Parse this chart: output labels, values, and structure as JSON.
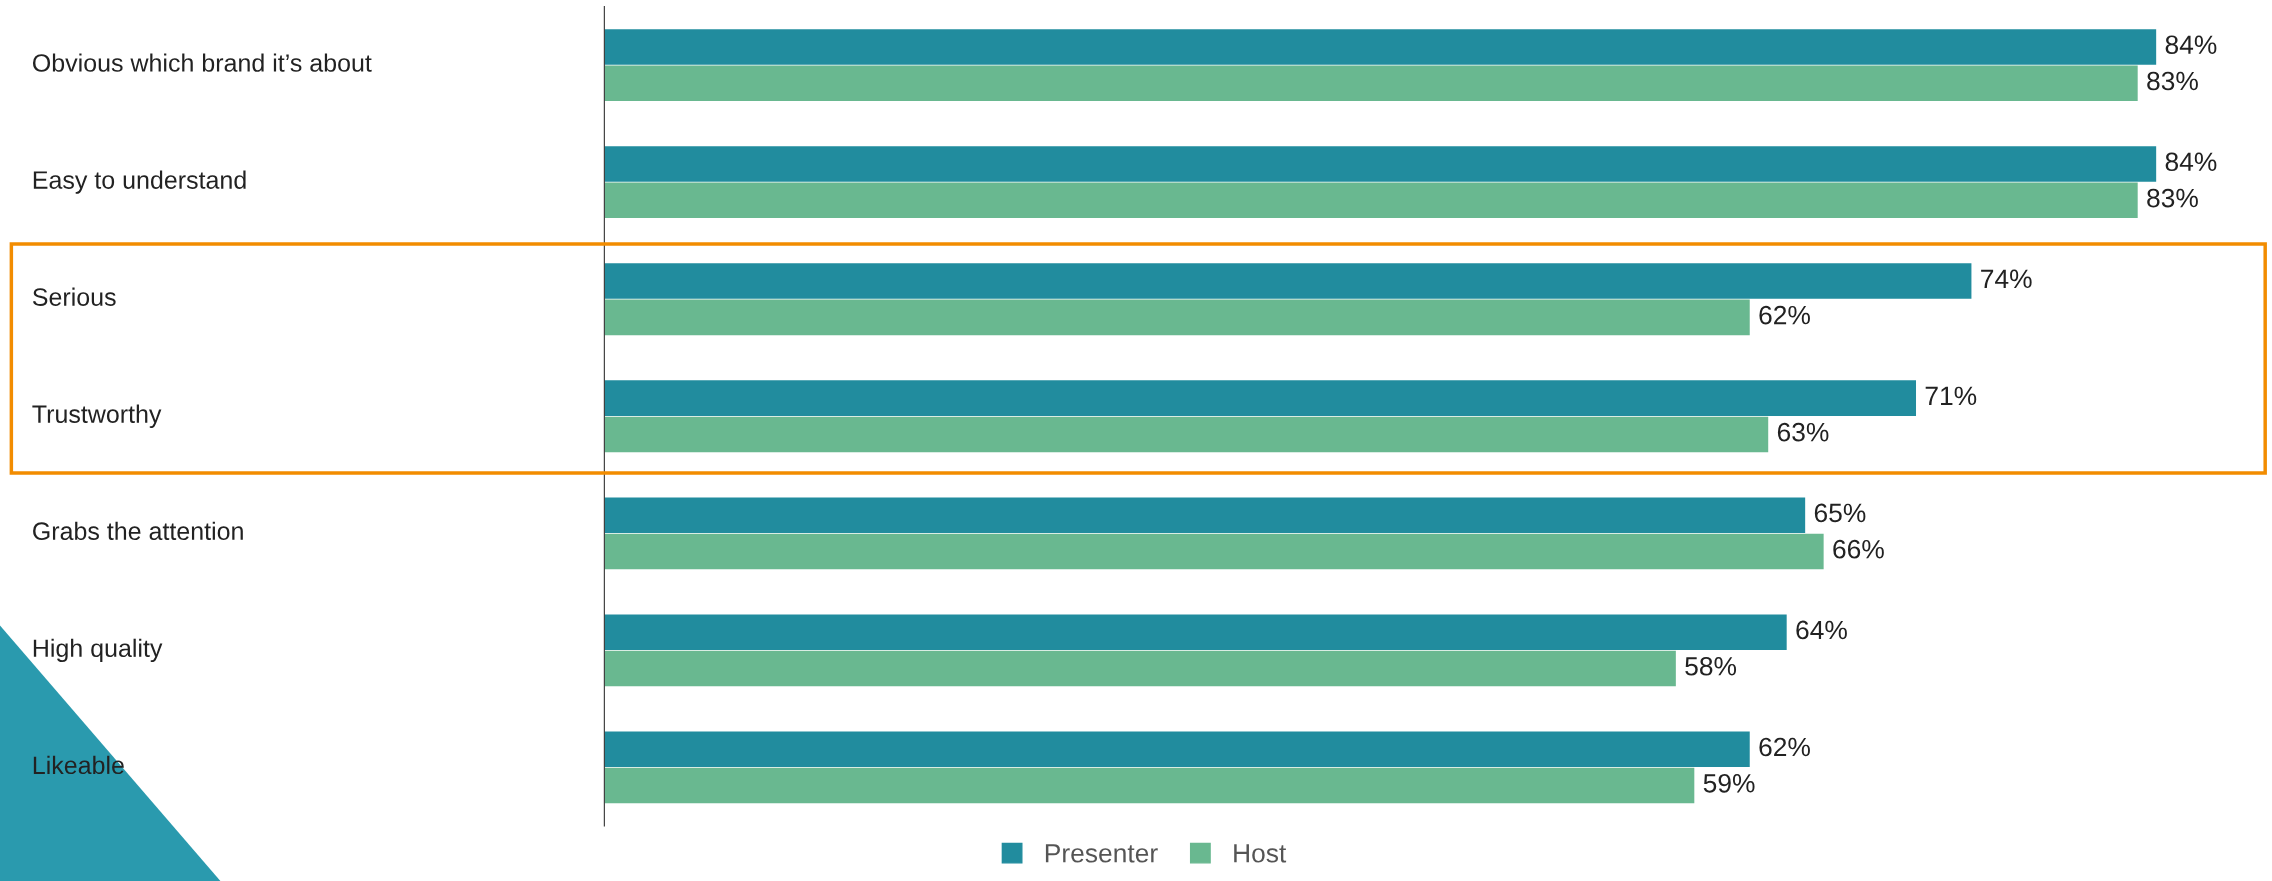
{
  "chart_data": {
    "type": "bar",
    "orientation": "horizontal",
    "categories": [
      "Obvious which brand it’s about",
      "Easy to understand",
      "Serious",
      "Trustworthy",
      "Grabs the attention",
      "High quality",
      "Likeable"
    ],
    "series": [
      {
        "name": "Presenter",
        "color": "#218c9e",
        "values": [
          84,
          84,
          74,
          71,
          65,
          64,
          62
        ],
        "value_labels": [
          "84%",
          "84%",
          "74%",
          "71%",
          "65%",
          "64%",
          "62%"
        ]
      },
      {
        "name": "Host",
        "color": "#69b890",
        "values": [
          83,
          83,
          62,
          63,
          66,
          58,
          59
        ],
        "value_labels": [
          "83%",
          "83%",
          "62%",
          "63%",
          "66%",
          "58%",
          "59%"
        ]
      }
    ],
    "legend": "bottom"
  }
}
